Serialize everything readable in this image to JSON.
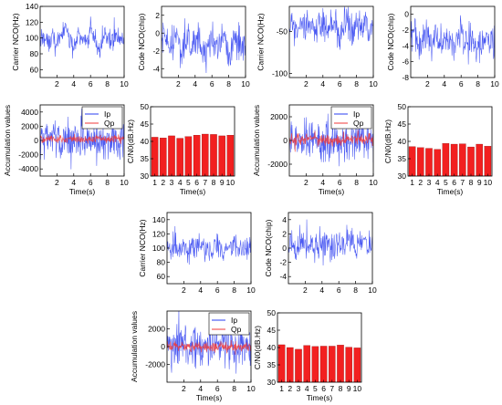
{
  "colors": {
    "ip": "#2a3cf0",
    "qp": "#f03a3a",
    "bar": "#f22020",
    "axis": "#000000"
  },
  "chart_data": [
    {
      "id": "g1-carrier",
      "type": "line",
      "ylabel": "Carrier NCO(Hz)",
      "xlabel": "",
      "xlim": [
        0,
        10
      ],
      "ylim": [
        50,
        140
      ],
      "xticks": [
        "2",
        "4",
        "6",
        "8",
        "10"
      ],
      "yticks": [
        "60",
        "80",
        "100",
        "120",
        "140"
      ],
      "series": [
        {
          "color": "ip",
          "values": [
            [
              0,
              98
            ],
            [
              0.5,
              104
            ],
            [
              1,
              92
            ],
            [
              1.5,
              110
            ],
            [
              2,
              88
            ],
            [
              2.5,
              100
            ],
            [
              3,
              118
            ],
            [
              3.5,
              96
            ],
            [
              4,
              85
            ],
            [
              4.5,
              106
            ],
            [
              5,
              99
            ],
            [
              5.5,
              91
            ],
            [
              6,
              112
            ],
            [
              6.5,
              97
            ],
            [
              7,
              87
            ],
            [
              7.5,
              103
            ],
            [
              8,
              99
            ],
            [
              8.5,
              94
            ],
            [
              9,
              108
            ],
            [
              9.5,
              96
            ],
            [
              10,
              100
            ]
          ],
          "noise": 12
        }
      ]
    },
    {
      "id": "g1-code",
      "type": "line",
      "ylabel": "Code NCO(chip)",
      "xlabel": "",
      "xlim": [
        0,
        10
      ],
      "ylim": [
        -5,
        3
      ],
      "xticks": [
        "2",
        "4",
        "6",
        "8",
        "10"
      ],
      "yticks": [
        "-4",
        "-2",
        "0",
        "2"
      ],
      "series": [
        {
          "color": "ip",
          "values": [
            [
              0,
              -1
            ],
            [
              0.5,
              -0.5
            ],
            [
              1,
              -1.8
            ],
            [
              1.5,
              -0.3
            ],
            [
              2,
              -1.2
            ],
            [
              2.5,
              -2
            ],
            [
              3,
              -0.8
            ],
            [
              3.5,
              -1.6
            ],
            [
              4,
              -0.4
            ],
            [
              4.5,
              -1.3
            ],
            [
              5,
              -2.2
            ],
            [
              5.5,
              -1
            ],
            [
              6,
              -0.6
            ],
            [
              6.5,
              -1.7
            ],
            [
              7,
              -1.1
            ],
            [
              7.5,
              -0.5
            ],
            [
              8,
              -1.9
            ],
            [
              8.5,
              -1.2
            ],
            [
              9,
              -0.7
            ],
            [
              9.5,
              -1.4
            ],
            [
              10,
              -1
            ]
          ],
          "noise": 1.6
        }
      ]
    },
    {
      "id": "g1-acc",
      "type": "line",
      "ylabel": "Accumulation values",
      "xlabel": "Time(s)",
      "xlim": [
        0,
        10
      ],
      "ylim": [
        -5000,
        5000
      ],
      "xticks": [
        "2",
        "4",
        "6",
        "8",
        "10"
      ],
      "yticks": [
        "-4000",
        "-2000",
        "0",
        "2000",
        "4000"
      ],
      "legend": [
        "Ip",
        "Qp"
      ],
      "legend_position": "top-right",
      "series": [
        {
          "name": "Ip",
          "color": "ip",
          "values": [
            [
              0,
              0
            ],
            [
              10,
              0
            ]
          ],
          "noise": 2500
        },
        {
          "name": "Qp",
          "color": "qp",
          "values": [
            [
              0,
              200
            ],
            [
              10,
              200
            ]
          ],
          "noise": 500
        }
      ]
    },
    {
      "id": "g1-cn0",
      "type": "bar",
      "ylabel": "C/N0(dB.Hz)",
      "xlabel": "Time(s)",
      "ylim": [
        30,
        50
      ],
      "categories": [
        "1",
        "2",
        "3",
        "4",
        "5",
        "6",
        "7",
        "8",
        "9",
        "10"
      ],
      "yticks": [
        "30",
        "35",
        "40",
        "45",
        "50"
      ],
      "values": [
        41.2,
        41.0,
        41.6,
        40.9,
        41.4,
        41.8,
        42.1,
        42.0,
        41.6,
        41.8
      ]
    },
    {
      "id": "g2-carrier",
      "type": "line",
      "ylabel": "Carrier NCO(Hz)",
      "xlabel": "",
      "xlim": [
        0,
        10
      ],
      "ylim": [
        -105,
        -20
      ],
      "xticks": [
        "2",
        "4",
        "6",
        "8",
        "10"
      ],
      "yticks": [
        "-100",
        "-50"
      ],
      "series": [
        {
          "color": "ip",
          "values": [
            [
              0,
              -45
            ],
            [
              0.5,
              -38
            ],
            [
              1,
              -52
            ],
            [
              1.5,
              -40
            ],
            [
              2,
              -47
            ],
            [
              2.5,
              -33
            ],
            [
              3,
              -55
            ],
            [
              3.5,
              -42
            ],
            [
              4,
              -36
            ],
            [
              4.5,
              -50
            ],
            [
              5,
              -44
            ],
            [
              5.5,
              -39
            ],
            [
              6,
              -53
            ],
            [
              6.5,
              -41
            ],
            [
              7,
              -35
            ],
            [
              7.5,
              -49
            ],
            [
              8,
              -43
            ],
            [
              8.5,
              -46
            ],
            [
              9,
              -38
            ],
            [
              9.5,
              -51
            ],
            [
              10,
              -44
            ]
          ],
          "noise": 16
        }
      ]
    },
    {
      "id": "g2-code",
      "type": "line",
      "ylabel": "Code NCO(chip)",
      "xlabel": "",
      "xlim": [
        0,
        10
      ],
      "ylim": [
        -8,
        1
      ],
      "xticks": [
        "2",
        "4",
        "6",
        "8",
        "10"
      ],
      "yticks": [
        "-8",
        "-6",
        "-4",
        "-2",
        "0"
      ],
      "series": [
        {
          "color": "ip",
          "values": [
            [
              0,
              -3
            ],
            [
              0.5,
              -2.5
            ],
            [
              1,
              -4
            ],
            [
              1.5,
              -3.2
            ],
            [
              2,
              -2.8
            ],
            [
              2.5,
              -3.8
            ],
            [
              3,
              -3
            ],
            [
              3.5,
              -4.2
            ],
            [
              4,
              -2.6
            ],
            [
              4.5,
              -3.4
            ],
            [
              5,
              -4
            ],
            [
              5.5,
              -3.1
            ],
            [
              6,
              -2.7
            ],
            [
              6.5,
              -3.9
            ],
            [
              7,
              -3.3
            ],
            [
              7.5,
              -2.9
            ],
            [
              8,
              -4.1
            ],
            [
              8.5,
              -3.5
            ],
            [
              9,
              -2.8
            ],
            [
              9.5,
              -3.6
            ],
            [
              10,
              -3.2
            ]
          ],
          "noise": 2
        }
      ]
    },
    {
      "id": "g2-acc",
      "type": "line",
      "ylabel": "Accumulation values",
      "xlabel": "Time(s)",
      "xlim": [
        0,
        10
      ],
      "ylim": [
        -3000,
        3000
      ],
      "xticks": [
        "2",
        "4",
        "6",
        "8",
        "10"
      ],
      "yticks": [
        "-2000",
        "0",
        "2000"
      ],
      "legend": [
        "Ip",
        "Qp"
      ],
      "legend_position": "top-right",
      "series": [
        {
          "name": "Ip",
          "color": "ip",
          "values": [
            [
              0,
              0
            ],
            [
              10,
              0
            ]
          ],
          "noise": 1500
        },
        {
          "name": "Qp",
          "color": "qp",
          "values": [
            [
              0,
              100
            ],
            [
              10,
              100
            ]
          ],
          "noise": 450
        }
      ]
    },
    {
      "id": "g2-cn0",
      "type": "bar",
      "ylabel": "C/N0(dB.Hz)",
      "xlabel": "Time(s)",
      "ylim": [
        30,
        50
      ],
      "categories": [
        "1",
        "2",
        "3",
        "4",
        "5",
        "6",
        "7",
        "8",
        "9",
        "10"
      ],
      "yticks": [
        "30",
        "35",
        "40",
        "45",
        "50"
      ],
      "values": [
        38.5,
        38.2,
        38.0,
        37.7,
        39.4,
        39.2,
        39.3,
        38.4,
        39.2,
        38.6
      ]
    },
    {
      "id": "g3-carrier",
      "type": "line",
      "ylabel": "Carrier NCO(Hz)",
      "xlabel": "",
      "xlim": [
        0,
        10
      ],
      "ylim": [
        50,
        150
      ],
      "xticks": [
        "2",
        "4",
        "6",
        "8",
        "10"
      ],
      "yticks": [
        "60",
        "80",
        "100",
        "120",
        "140"
      ],
      "series": [
        {
          "color": "ip",
          "values": [
            [
              0,
              100
            ],
            [
              0.5,
              96
            ],
            [
              1,
              104
            ],
            [
              1.5,
              98
            ],
            [
              2,
              108
            ],
            [
              2.5,
              94
            ],
            [
              3,
              102
            ],
            [
              3.5,
              99
            ],
            [
              4,
              106
            ],
            [
              4.5,
              95
            ],
            [
              5,
              101
            ],
            [
              5.5,
              97
            ],
            [
              6,
              105
            ],
            [
              6.5,
              93
            ],
            [
              7,
              103
            ],
            [
              7.5,
              99
            ],
            [
              8,
              107
            ],
            [
              8.5,
              96
            ],
            [
              9,
              100
            ],
            [
              9.5,
              98
            ],
            [
              10,
              102
            ]
          ],
          "noise": 13
        }
      ]
    },
    {
      "id": "g3-code",
      "type": "line",
      "ylabel": "Code NCO(chip)",
      "xlabel": "",
      "xlim": [
        0,
        10
      ],
      "ylim": [
        -5,
        5
      ],
      "xticks": [
        "2",
        "4",
        "6",
        "8",
        "10"
      ],
      "yticks": [
        "-4",
        "-2",
        "0",
        "2",
        "4"
      ],
      "series": [
        {
          "color": "ip",
          "values": [
            [
              0,
              0
            ],
            [
              0.5,
              0.6
            ],
            [
              1,
              -0.4
            ],
            [
              1.5,
              1
            ],
            [
              2,
              0.2
            ],
            [
              2.5,
              1.2
            ],
            [
              3,
              0.4
            ],
            [
              3.5,
              -0.2
            ],
            [
              4,
              0.8
            ],
            [
              4.5,
              1.4
            ],
            [
              5,
              0.6
            ],
            [
              5.5,
              0
            ],
            [
              6,
              1
            ],
            [
              6.5,
              0.5
            ],
            [
              7,
              1.3
            ],
            [
              7.5,
              0.7
            ],
            [
              8,
              -0.1
            ],
            [
              8.5,
              0.9
            ],
            [
              9,
              0.4
            ],
            [
              9.5,
              1.1
            ],
            [
              10,
              0.5
            ]
          ],
          "noise": 1.8
        }
      ]
    },
    {
      "id": "g3-acc",
      "type": "line",
      "ylabel": "Accumulation values",
      "xlabel": "Time(s)",
      "xlim": [
        0,
        10
      ],
      "ylim": [
        -4000,
        4000
      ],
      "xticks": [
        "2",
        "4",
        "6",
        "8",
        "10"
      ],
      "yticks": [
        "-2000",
        "0",
        "2000"
      ],
      "legend": [
        "Ip",
        "Qp"
      ],
      "legend_position": "top-right",
      "series": [
        {
          "name": "Ip",
          "color": "ip",
          "values": [
            [
              0,
              0
            ],
            [
              10,
              0
            ]
          ],
          "noise": 1900
        },
        {
          "name": "Qp",
          "color": "qp",
          "values": [
            [
              0,
              0
            ],
            [
              10,
              0
            ]
          ],
          "noise": 500
        }
      ]
    },
    {
      "id": "g3-cn0",
      "type": "bar",
      "ylabel": "C/N0(dB.Hz)",
      "xlabel": "Time(s)",
      "ylim": [
        30,
        50
      ],
      "categories": [
        "1",
        "2",
        "3",
        "4",
        "5",
        "6",
        "7",
        "8",
        "9",
        "10"
      ],
      "yticks": [
        "30",
        "35",
        "40",
        "45",
        "50"
      ],
      "values": [
        40.8,
        40.0,
        39.5,
        40.6,
        40.3,
        40.4,
        40.4,
        40.7,
        40.1,
        39.9
      ]
    }
  ]
}
